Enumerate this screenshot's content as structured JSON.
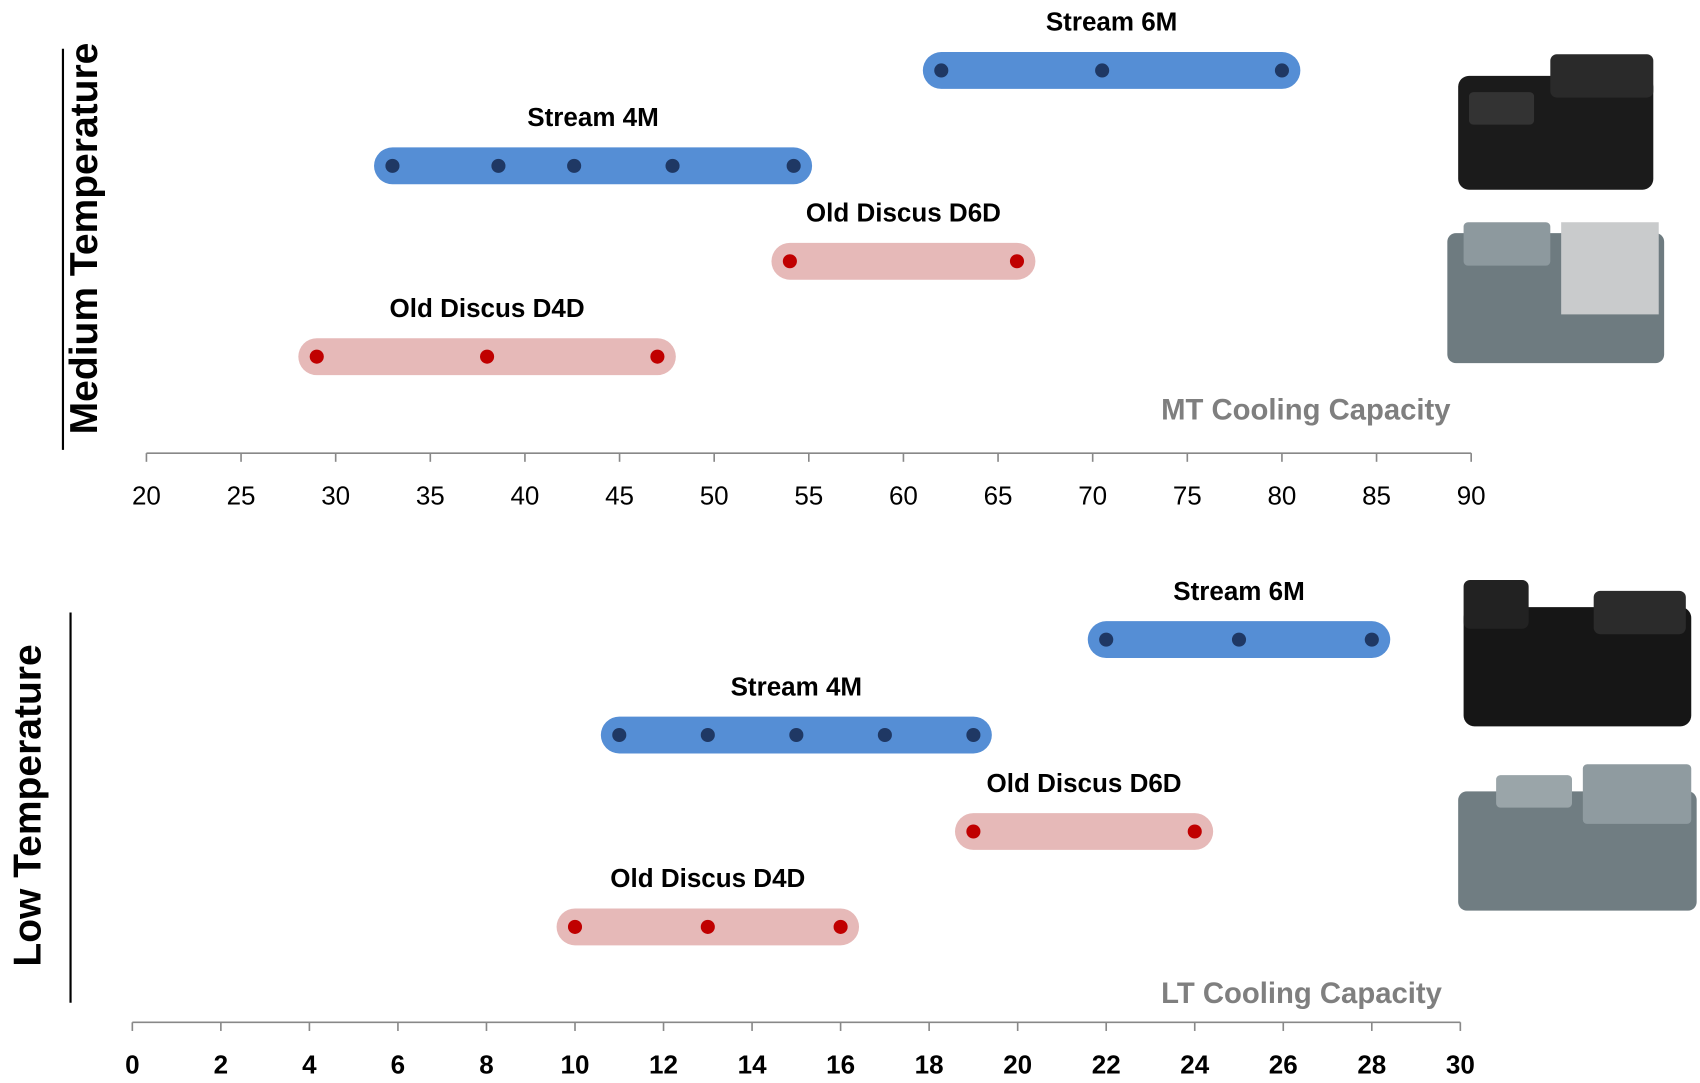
{
  "chart_data": [
    {
      "type": "range",
      "y_title": "Medium Temperature",
      "x_title": "MT Cooling Capacity",
      "xlim": [
        20,
        90
      ],
      "xticks": [
        20,
        25,
        30,
        35,
        40,
        45,
        50,
        55,
        60,
        65,
        70,
        75,
        80,
        85,
        90
      ],
      "series": [
        {
          "name": "Stream 6M",
          "color": "#558ed5",
          "marker_color": "#1f3864",
          "values": [
            62,
            70.5,
            80
          ]
        },
        {
          "name": "Stream 4M",
          "color": "#558ed5",
          "marker_color": "#1f3864",
          "values": [
            33,
            38.6,
            42.6,
            47.8,
            54.2
          ]
        },
        {
          "name": "Old Discus D6D",
          "color": "#e6b9b8",
          "marker_color": "#c00000",
          "values": [
            54,
            66
          ]
        },
        {
          "name": "Old Discus D4D",
          "color": "#e6b9b8",
          "marker_color": "#c00000",
          "values": [
            29,
            38,
            47
          ]
        }
      ]
    },
    {
      "type": "range",
      "y_title": "Low Temperature",
      "x_title": "LT Cooling Capacity",
      "xlim": [
        0,
        30
      ],
      "xticks": [
        0,
        2,
        4,
        6,
        8,
        10,
        12,
        14,
        16,
        18,
        20,
        22,
        24,
        26,
        28,
        30
      ],
      "series": [
        {
          "name": "Stream 6M",
          "color": "#558ed5",
          "marker_color": "#1f3864",
          "values": [
            22,
            25,
            28
          ]
        },
        {
          "name": "Stream 4M",
          "color": "#558ed5",
          "marker_color": "#1f3864",
          "values": [
            11,
            13,
            15,
            17,
            19
          ]
        },
        {
          "name": "Old Discus D6D",
          "color": "#e6b9b8",
          "marker_color": "#c00000",
          "values": [
            19,
            24
          ]
        },
        {
          "name": "Old Discus D4D",
          "color": "#e6b9b8",
          "marker_color": "#c00000",
          "values": [
            10,
            13,
            16
          ]
        }
      ]
    }
  ]
}
